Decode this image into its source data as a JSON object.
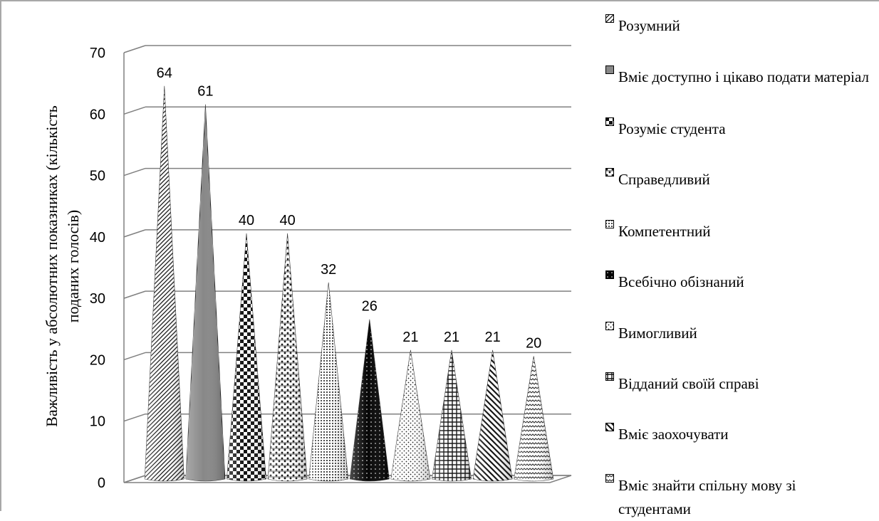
{
  "chart_data": {
    "type": "bar",
    "shape": "cone",
    "categories": [
      "Розумний",
      "Вміє доступно і цікаво подати матеріал",
      "Розуміє студента",
      "Справедливий",
      "Компетентний",
      "Всебічно обізнаний",
      "Вимогливий",
      "Відданий своїй справі",
      "Вміє заохочувати",
      "Вміє знайти спільну мову зі студентами"
    ],
    "values": [
      64,
      61,
      40,
      40,
      32,
      26,
      21,
      21,
      21,
      20
    ],
    "ylabel_line1": "Важливість у абсолютних показниках (кількість",
    "ylabel_line2": "поданих голосів)",
    "ylim": [
      0,
      70
    ],
    "yticks": [
      "0",
      "10",
      "20",
      "30",
      "40",
      "50",
      "60",
      "70"
    ],
    "grid": true,
    "legend_position": "right",
    "data_labels": [
      "64",
      "61",
      "40",
      "40",
      "32",
      "26",
      "21",
      "21",
      "21",
      "20"
    ]
  }
}
